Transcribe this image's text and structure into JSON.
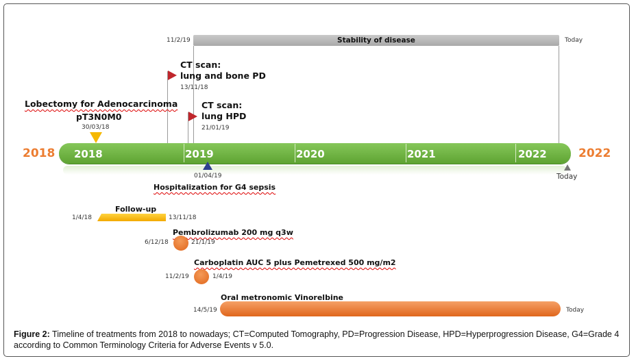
{
  "timeline": {
    "start_year_label": "2018",
    "end_year_label": "2022",
    "years": [
      "2018",
      "2019",
      "2020",
      "2021",
      "2022"
    ]
  },
  "stability": {
    "start": "11/2/19",
    "label": "Stability of disease",
    "end": "Today"
  },
  "events": {
    "ct1": {
      "line1": "CT scan:",
      "line2": "lung and bone PD",
      "date": "13/11/18"
    },
    "ct2": {
      "line1": "CT scan:",
      "line2": "lung HPD",
      "date": "21/01/19"
    },
    "lobectomy": {
      "line1": "Lobectomy for Adenocarcinoma",
      "line2": "pT3N0M0",
      "date": "30/03/18"
    },
    "hospitalization": {
      "date": "01/04/19",
      "label": "Hospitalization for G4 sepsis"
    },
    "today_marker": "Today"
  },
  "treatments": {
    "followup": {
      "label": "Follow-up",
      "start": "1/4/18",
      "end": "13/11/18"
    },
    "pembro": {
      "label": "Pembrolizumab 200 mg q3w",
      "start": "6/12/18",
      "end": "21/1/19"
    },
    "carbo": {
      "label": "Carboplatin AUC 5 plus Pemetrexed 500 mg/m2",
      "start": "11/2/19",
      "end": "1/4/19"
    },
    "vino": {
      "label": "Oral metronomic Vinorelbine",
      "start": "14/5/19",
      "end": "Today"
    }
  },
  "caption": {
    "bold": "Figure 2:",
    "text": " Timeline of treatments from 2018 to nowadays; CT=Computed Tomography, PD=Progression Disease, HPD=Hyperprogression Disease, G4=Grade 4 according to Common Terminology Criteria for Adverse Events v 5.0."
  },
  "colors": {
    "axis_green": "#6db33f",
    "accent_orange": "#ec7d31",
    "flag_red": "#c0262c",
    "bar_grey": "#b3b3b3",
    "followup_yellow": "#f5b800",
    "hospital_blue": "#2e3f8f"
  }
}
